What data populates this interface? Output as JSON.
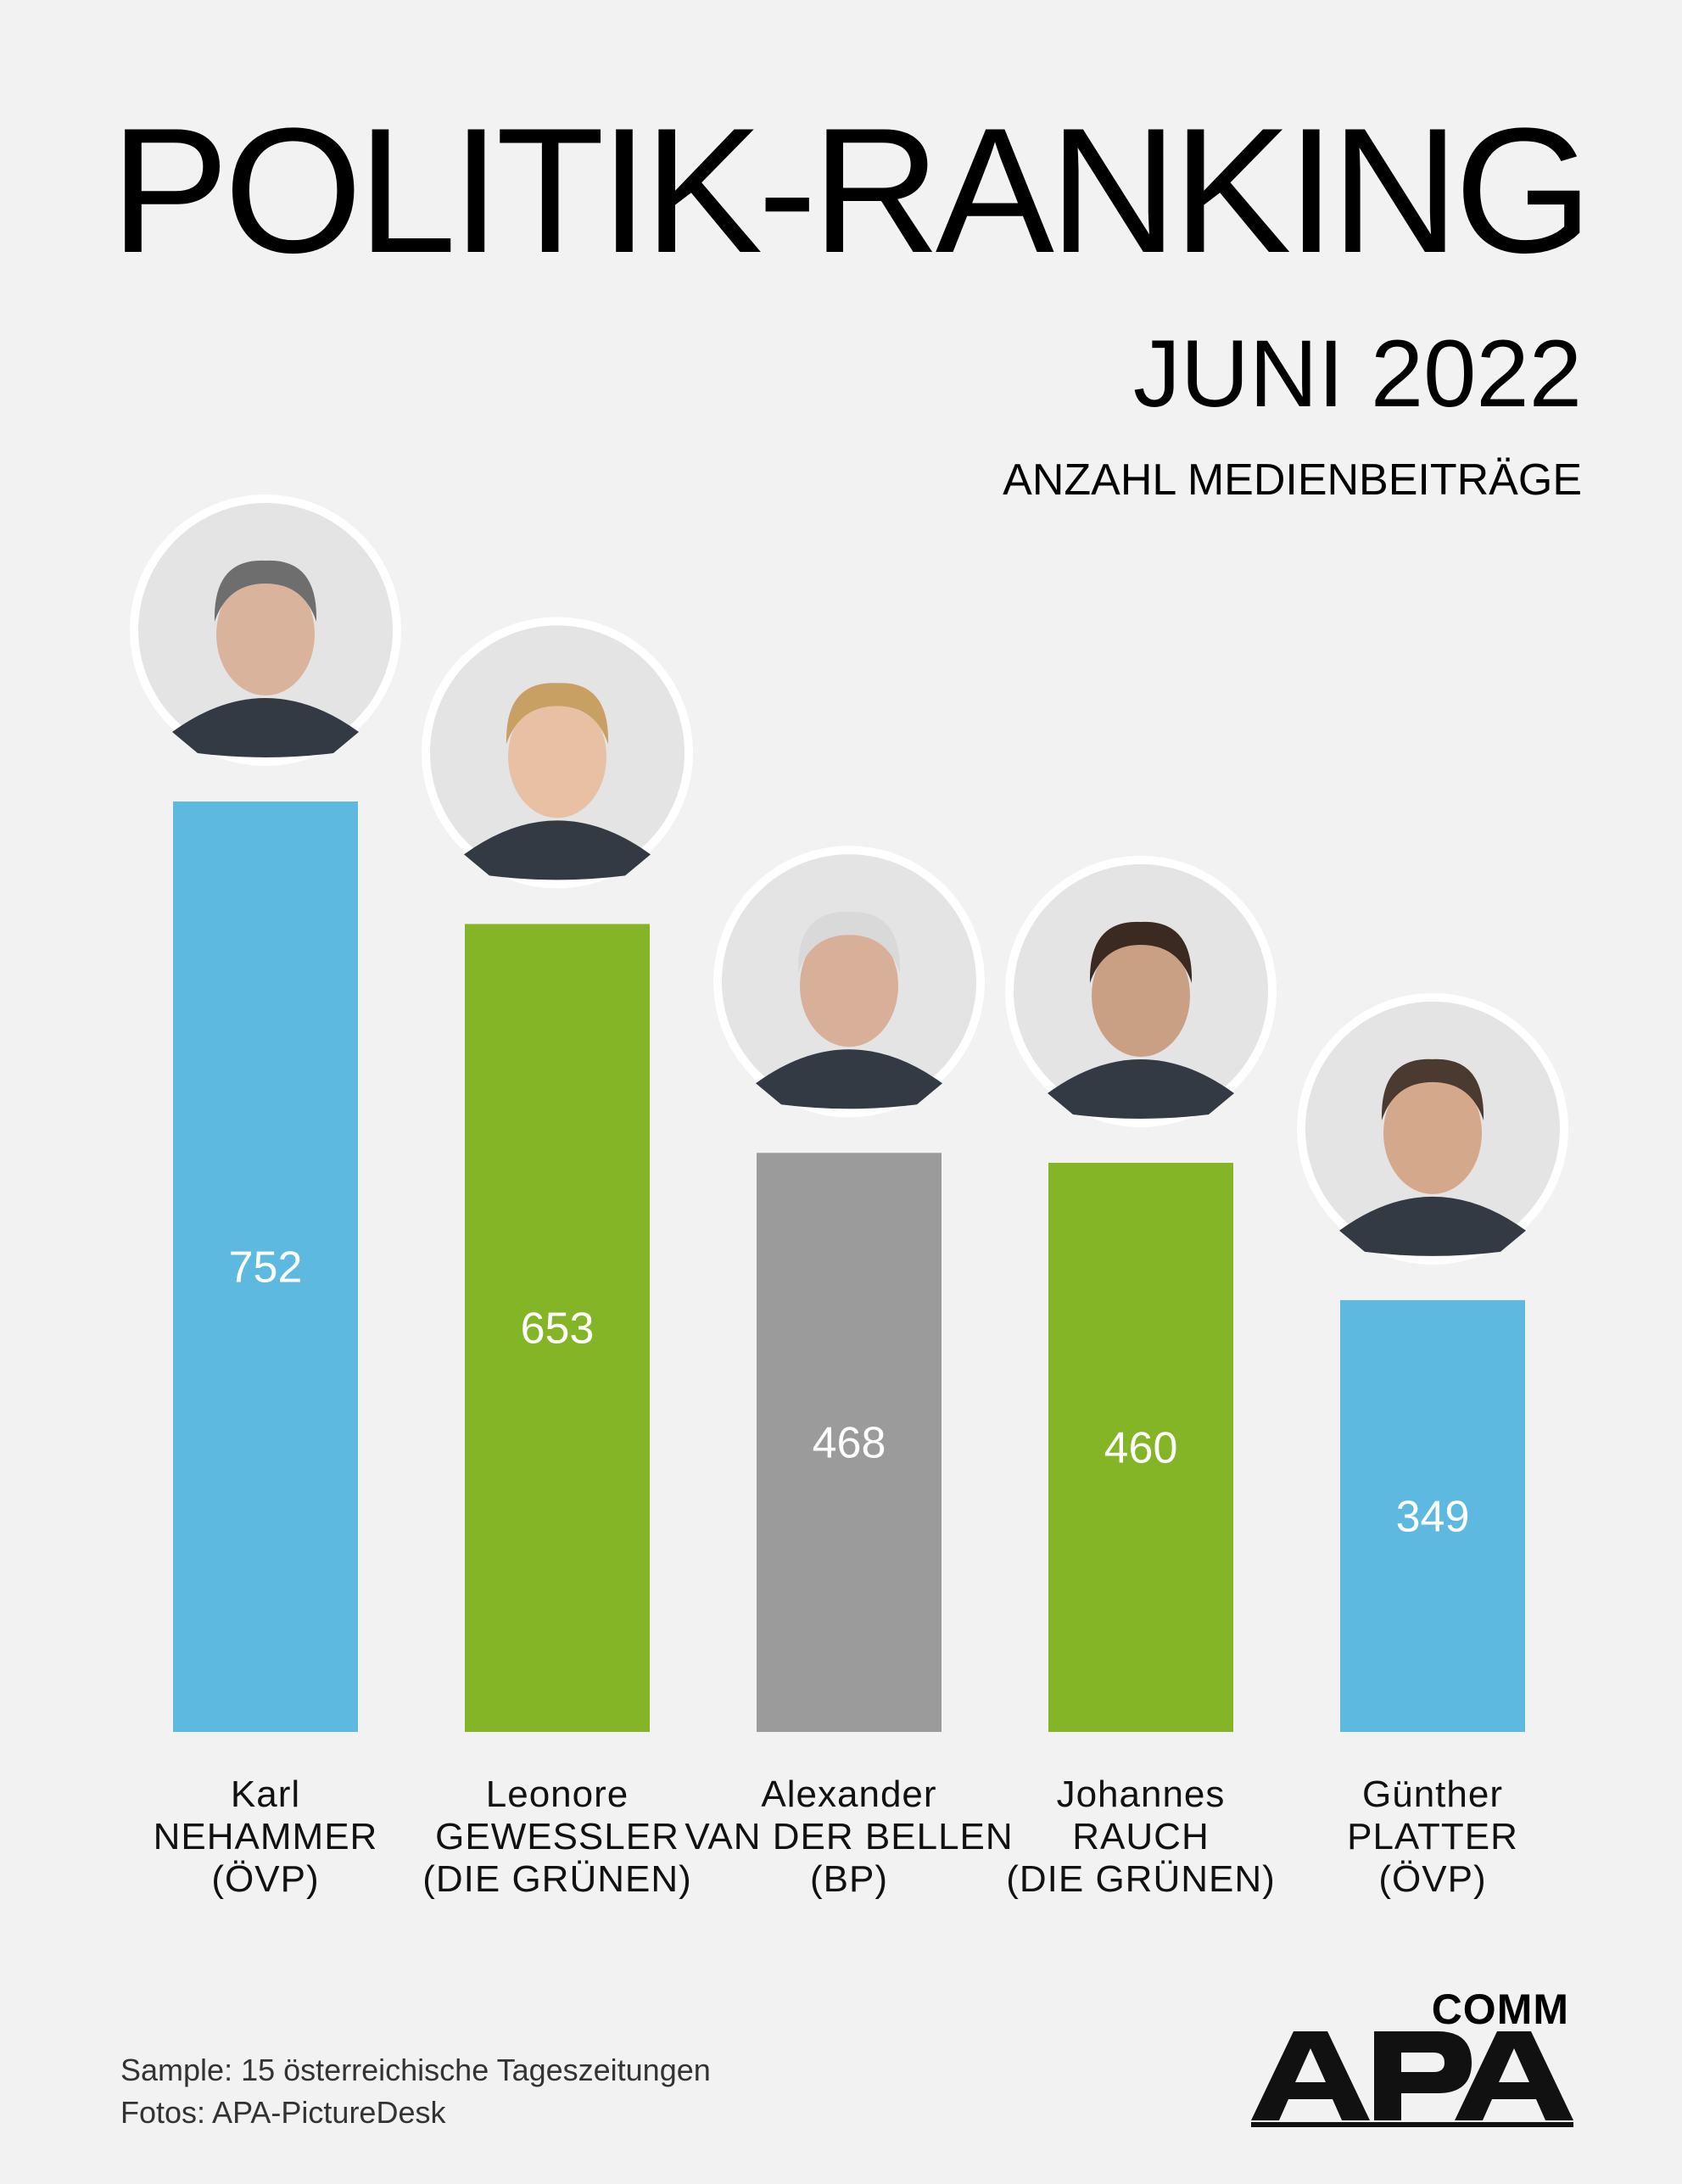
{
  "header": {
    "title": "POLITIK-RANKING",
    "subtitle": "JUNI 2022",
    "measure": "ANZAHL MEDIENBEITRÄGE"
  },
  "chart_data": {
    "type": "bar",
    "title": "POLITIK-RANKING",
    "subtitle": "JUNI 2022",
    "ylabel": "ANZAHL MEDIENBEITRÄGE",
    "ylim": [
      0,
      752
    ],
    "grid": false,
    "legend": "none",
    "categories": [
      "Karl NEHAMMER (ÖVP)",
      "Leonore GEWESSLER (DIE GRÜNEN)",
      "Alexander VAN DER BELLEN (BP)",
      "Johannes RAUCH (DIE GRÜNEN)",
      "Günther PLATTER (ÖVP)"
    ],
    "values": [
      752,
      653,
      468,
      460,
      349
    ],
    "bars": [
      {
        "first": "Karl",
        "last": "NEHAMMER",
        "party": "(ÖVP)",
        "value": 752,
        "color": "#5eb9e1",
        "portrait": "portrait-karl-nehammer"
      },
      {
        "first": "Leonore",
        "last": "GEWESSLER",
        "party": "(DIE GRÜNEN)",
        "value": 653,
        "color": "#84b526",
        "portrait": "portrait-leonore-gewessler"
      },
      {
        "first": "Alexander",
        "last": "VAN DER BELLEN",
        "party": "(BP)",
        "value": 468,
        "color": "#9b9b9b",
        "portrait": "portrait-alexander-van-der-bellen"
      },
      {
        "first": "Johannes",
        "last": "RAUCH",
        "party": "(DIE GRÜNEN)",
        "value": 460,
        "color": "#84b526",
        "portrait": "portrait-johannes-rauch"
      },
      {
        "first": "Günther",
        "last": "PLATTER",
        "party": "(ÖVP)",
        "value": 349,
        "color": "#5eb9e1",
        "portrait": "portrait-guenther-platter"
      }
    ]
  },
  "footer": {
    "sample": "Sample: 15 österreichische Tageszeitungen",
    "photos": "Fotos: APA-PictureDesk",
    "logo_main": "APA",
    "logo_sub": "COMM"
  }
}
